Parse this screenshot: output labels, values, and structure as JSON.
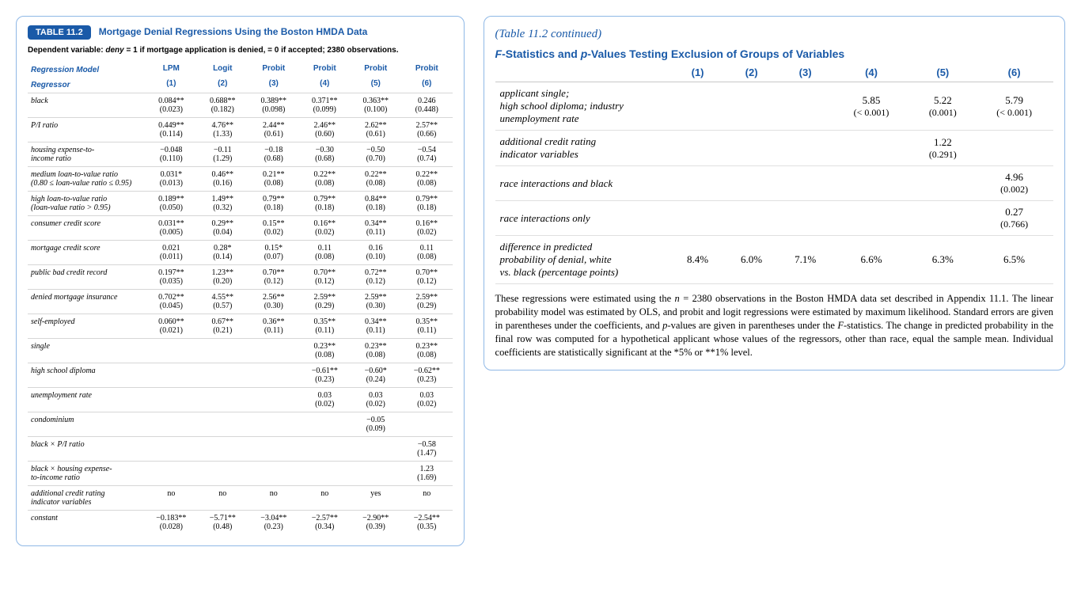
{
  "colors": {
    "accent": "#1a5aa8",
    "border": "#8fb8e6",
    "rule": "#d6d6d6",
    "text": "#000000",
    "bg": "#ffffff"
  },
  "left": {
    "badge": "TABLE 11.2",
    "title": "Mortgage Denial Regressions Using the Boston HMDA Data",
    "depvar_prefix": "Dependent variable: ",
    "depvar_var": "deny",
    "depvar_rest": " = 1 if mortgage application is denied, = 0 if accepted; 2380 observations.",
    "model_label": "Regression Model",
    "regressor_label": "Regressor",
    "models": [
      "LPM",
      "Logit",
      "Probit",
      "Probit",
      "Probit",
      "Probit"
    ],
    "colnums": [
      "(1)",
      "(2)",
      "(3)",
      "(4)",
      "(5)",
      "(6)"
    ],
    "rows": [
      {
        "label": "black",
        "c": [
          [
            "0.084**",
            "(0.023)"
          ],
          [
            "0.688**",
            "(0.182)"
          ],
          [
            "0.389**",
            "(0.098)"
          ],
          [
            "0.371**",
            "(0.099)"
          ],
          [
            "0.363**",
            "(0.100)"
          ],
          [
            "0.246",
            "(0.448)"
          ]
        ]
      },
      {
        "label": "P/I ratio",
        "c": [
          [
            "0.449**",
            "(0.114)"
          ],
          [
            "4.76**",
            "(1.33)"
          ],
          [
            "2.44**",
            "(0.61)"
          ],
          [
            "2.46**",
            "(0.60)"
          ],
          [
            "2.62**",
            "(0.61)"
          ],
          [
            "2.57**",
            "(0.66)"
          ]
        ]
      },
      {
        "label": "housing expense-to-\nincome ratio",
        "c": [
          [
            "−0.048",
            "(0.110)"
          ],
          [
            "−0.11",
            "(1.29)"
          ],
          [
            "−0.18",
            "(0.68)"
          ],
          [
            "−0.30",
            "(0.68)"
          ],
          [
            "−0.50",
            "(0.70)"
          ],
          [
            "−0.54",
            "(0.74)"
          ]
        ]
      },
      {
        "label": "medium loan-to-value ratio\n(0.80 ≤ loan-value ratio ≤ 0.95)",
        "c": [
          [
            "0.031*",
            "(0.013)"
          ],
          [
            "0.46**",
            "(0.16)"
          ],
          [
            "0.21**",
            "(0.08)"
          ],
          [
            "0.22**",
            "(0.08)"
          ],
          [
            "0.22**",
            "(0.08)"
          ],
          [
            "0.22**",
            "(0.08)"
          ]
        ]
      },
      {
        "label": "high loan-to-value ratio\n(loan-value ratio > 0.95)",
        "c": [
          [
            "0.189**",
            "(0.050)"
          ],
          [
            "1.49**",
            "(0.32)"
          ],
          [
            "0.79**",
            "(0.18)"
          ],
          [
            "0.79**",
            "(0.18)"
          ],
          [
            "0.84**",
            "(0.18)"
          ],
          [
            "0.79**",
            "(0.18)"
          ]
        ]
      },
      {
        "label": "consumer credit score",
        "c": [
          [
            "0.031**",
            "(0.005)"
          ],
          [
            "0.29**",
            "(0.04)"
          ],
          [
            "0.15**",
            "(0.02)"
          ],
          [
            "0.16**",
            "(0.02)"
          ],
          [
            "0.34**",
            "(0.11)"
          ],
          [
            "0.16**",
            "(0.02)"
          ]
        ]
      },
      {
        "label": "mortgage credit score",
        "c": [
          [
            "0.021",
            "(0.011)"
          ],
          [
            "0.28*",
            "(0.14)"
          ],
          [
            "0.15*",
            "(0.07)"
          ],
          [
            "0.11",
            "(0.08)"
          ],
          [
            "0.16",
            "(0.10)"
          ],
          [
            "0.11",
            "(0.08)"
          ]
        ]
      },
      {
        "label": "public bad credit record",
        "c": [
          [
            "0.197**",
            "(0.035)"
          ],
          [
            "1.23**",
            "(0.20)"
          ],
          [
            "0.70**",
            "(0.12)"
          ],
          [
            "0.70**",
            "(0.12)"
          ],
          [
            "0.72**",
            "(0.12)"
          ],
          [
            "0.70**",
            "(0.12)"
          ]
        ]
      },
      {
        "label": "denied mortgage insurance",
        "c": [
          [
            "0.702**",
            "(0.045)"
          ],
          [
            "4.55**",
            "(0.57)"
          ],
          [
            "2.56**",
            "(0.30)"
          ],
          [
            "2.59**",
            "(0.29)"
          ],
          [
            "2.59**",
            "(0.30)"
          ],
          [
            "2.59**",
            "(0.29)"
          ]
        ]
      },
      {
        "label": "self-employed",
        "c": [
          [
            "0.060**",
            "(0.021)"
          ],
          [
            "0.67**",
            "(0.21)"
          ],
          [
            "0.36**",
            "(0.11)"
          ],
          [
            "0.35**",
            "(0.11)"
          ],
          [
            "0.34**",
            "(0.11)"
          ],
          [
            "0.35**",
            "(0.11)"
          ]
        ]
      },
      {
        "label": "single",
        "c": [
          [
            "",
            ""
          ],
          [
            "",
            ""
          ],
          [
            "",
            ""
          ],
          [
            "0.23**",
            "(0.08)"
          ],
          [
            "0.23**",
            "(0.08)"
          ],
          [
            "0.23**",
            "(0.08)"
          ]
        ]
      },
      {
        "label": "high school diploma",
        "c": [
          [
            "",
            ""
          ],
          [
            "",
            ""
          ],
          [
            "",
            ""
          ],
          [
            "−0.61**",
            "(0.23)"
          ],
          [
            "−0.60*",
            "(0.24)"
          ],
          [
            "−0.62**",
            "(0.23)"
          ]
        ]
      },
      {
        "label": "unemployment rate",
        "c": [
          [
            "",
            ""
          ],
          [
            "",
            ""
          ],
          [
            "",
            ""
          ],
          [
            "0.03",
            "(0.02)"
          ],
          [
            "0.03",
            "(0.02)"
          ],
          [
            "0.03",
            "(0.02)"
          ]
        ]
      },
      {
        "label": "condominium",
        "c": [
          [
            "",
            ""
          ],
          [
            "",
            ""
          ],
          [
            "",
            ""
          ],
          [
            "",
            ""
          ],
          [
            "−0.05",
            "(0.09)"
          ],
          [
            "",
            ""
          ]
        ]
      },
      {
        "label": "black × P/I ratio",
        "c": [
          [
            "",
            ""
          ],
          [
            "",
            ""
          ],
          [
            "",
            ""
          ],
          [
            "",
            ""
          ],
          [
            "",
            ""
          ],
          [
            "−0.58",
            "(1.47)"
          ]
        ]
      },
      {
        "label": "black × housing expense-\nto-income ratio",
        "c": [
          [
            "",
            ""
          ],
          [
            "",
            ""
          ],
          [
            "",
            ""
          ],
          [
            "",
            ""
          ],
          [
            "",
            ""
          ],
          [
            "1.23",
            "(1.69)"
          ]
        ]
      },
      {
        "label": "additional credit rating\nindicator variables",
        "c": [
          [
            "no",
            ""
          ],
          [
            "no",
            ""
          ],
          [
            "no",
            ""
          ],
          [
            "no",
            ""
          ],
          [
            "yes",
            ""
          ],
          [
            "no",
            ""
          ]
        ]
      },
      {
        "label": "constant",
        "c": [
          [
            "−0.183**",
            "(0.028)"
          ],
          [
            "−5.71**",
            "(0.48)"
          ],
          [
            "−3.04**",
            "(0.23)"
          ],
          [
            "−2.57**",
            "(0.34)"
          ],
          [
            "−2.90**",
            "(0.39)"
          ],
          [
            "−2.54**",
            "(0.35)"
          ]
        ]
      }
    ]
  },
  "right": {
    "continued": "(Table 11.2 continued)",
    "heading_pre": "F",
    "heading_mid": "-Statistics and ",
    "heading_p": "p",
    "heading_post": "-Values Testing Exclusion of Groups of Variables",
    "colnums": [
      "(1)",
      "(2)",
      "(3)",
      "(4)",
      "(5)",
      "(6)"
    ],
    "rows": [
      {
        "label": "applicant single;\nhigh school diploma; industry\nunemployment rate",
        "c": [
          [
            "",
            ""
          ],
          [
            "",
            ""
          ],
          [
            "",
            ""
          ],
          [
            "5.85",
            "(< 0.001)"
          ],
          [
            "5.22",
            "(0.001)"
          ],
          [
            "5.79",
            "(< 0.001)"
          ]
        ]
      },
      {
        "label": "additional credit rating\nindicator variables",
        "c": [
          [
            "",
            ""
          ],
          [
            "",
            ""
          ],
          [
            "",
            ""
          ],
          [
            "",
            ""
          ],
          [
            "1.22",
            "(0.291)"
          ],
          [
            "",
            ""
          ]
        ]
      },
      {
        "label": "race interactions and black",
        "c": [
          [
            "",
            ""
          ],
          [
            "",
            ""
          ],
          [
            "",
            ""
          ],
          [
            "",
            ""
          ],
          [
            "",
            ""
          ],
          [
            "4.96",
            "(0.002)"
          ]
        ]
      },
      {
        "label": "race interactions only",
        "c": [
          [
            "",
            ""
          ],
          [
            "",
            ""
          ],
          [
            "",
            ""
          ],
          [
            "",
            ""
          ],
          [
            "",
            ""
          ],
          [
            "0.27",
            "(0.766)"
          ]
        ]
      },
      {
        "label": "difference in predicted\nprobability of denial, white\nvs. black (percentage points)",
        "c": [
          [
            "8.4%",
            ""
          ],
          [
            "6.0%",
            ""
          ],
          [
            "7.1%",
            ""
          ],
          [
            "6.6%",
            ""
          ],
          [
            "6.3%",
            ""
          ],
          [
            "6.5%",
            ""
          ]
        ]
      }
    ],
    "footnote_parts": [
      "These regressions were estimated using the ",
      "n",
      " = 2380 observations in the Boston HMDA data set described in Appendix 11.1. The linear probability model was estimated by OLS, and probit and logit regressions were estimated by maximum likelihood. Standard errors are given in parentheses under the coefficients, and ",
      "p",
      "-values are given in parentheses under the ",
      "F",
      "-statistics. The change in predicted probability in the final row was computed for a hypothetical applicant whose values of the regressors, other than race, equal the sample mean. Individual coefficients are statistically significant at the *5% or **1% level."
    ]
  }
}
